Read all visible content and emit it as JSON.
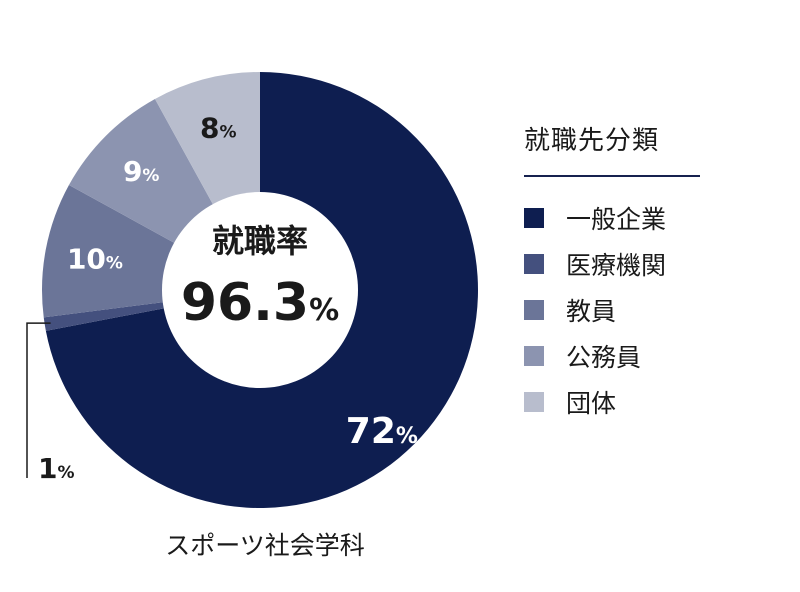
{
  "chart_data": {
    "type": "pie",
    "donut": true,
    "center": {
      "title": "就職率",
      "value": "96.3",
      "unit": "%"
    },
    "caption": "スポーツ社会学科",
    "legend_title": "就職先分類",
    "legend_position": "right",
    "slices": [
      {
        "label": "一般企業",
        "value": 72,
        "display": "72",
        "color": "#0e1e50"
      },
      {
        "label": "医療機関",
        "value": 1,
        "display": "1",
        "color": "#44507e"
      },
      {
        "label": "教員",
        "value": 10,
        "display": "10",
        "color": "#6b7598"
      },
      {
        "label": "公務員",
        "value": 9,
        "display": "9",
        "color": "#8c94b0"
      },
      {
        "label": "団体",
        "value": 8,
        "display": "8",
        "color": "#b8bdcd"
      }
    ],
    "unit": "%"
  }
}
